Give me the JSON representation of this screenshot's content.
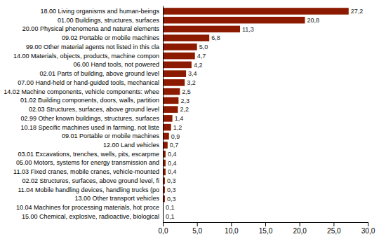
{
  "chart_data": {
    "type": "bar",
    "orientation": "horizontal",
    "categories": [
      "18.00 Living organisms and human-beings",
      "01.00 Buildings, structures, surfaces",
      "20.00 Physical phenomena and natural elements",
      "09.02 Portable or mobile machines",
      "99.00 Other material agents not listed in this cla",
      "14.00 Materials, objects, products, machine compon",
      "06.00 Hand tools, not powered",
      "02.01 Parts of building, above ground level",
      "07.00 Hand-held or hand-guided tools, mechanical",
      "14.02 Machine components, vehicle components: whee",
      "01.02 Building components, doors, walls, partition",
      "02.03 Structures, surfaces, above ground level",
      "02.99 Other known buildings, structures, surfaces",
      "10.18 Specific machines used in farming, not liste",
      "09.01 Portable or mobile machines",
      "12.00 Land vehicles",
      "03.01 Excavations, trenches, wells, pits, escarpme",
      "05.00 Motors, systems for energy transmission and",
      "11.03 Fixed cranes, mobile cranes, vehicle-mounted",
      "02.02 Structures, surfaces, above ground level, fi",
      "11.04 Mobile handling devices, handling trucks (po",
      "13.00 Other transport vehicles",
      "10.04 Machines for processing materials, hot proce",
      "15.00 Chemical, explosive, radioactive, biological"
    ],
    "values": [
      27.2,
      20.8,
      11.3,
      6.8,
      5.0,
      4.7,
      4.2,
      3.4,
      3.2,
      2.5,
      2.3,
      2.2,
      1.4,
      1.2,
      0.9,
      0.7,
      0.4,
      0.4,
      0.4,
      0.3,
      0.3,
      0.3,
      0.1,
      0.1
    ],
    "value_labels": [
      "27,2",
      "20,8",
      "11,3",
      "6,8",
      "5,0",
      "4,7",
      "4,2",
      "3,4",
      "3,2",
      "2,5",
      "2,3",
      "2,2",
      "1,4",
      "1,2",
      "0,9",
      "0,7",
      "0,4",
      "0,4",
      "0,4",
      "0,3",
      "0,3",
      "0,3",
      "0,1",
      "0,1"
    ],
    "data_labels": true,
    "color": "#8B1A00",
    "xlim": [
      0,
      30
    ],
    "xticks": [
      {
        "value": 0,
        "label": "0,0"
      },
      {
        "value": 5,
        "label": "5,0"
      },
      {
        "value": 10,
        "label": "10,0"
      },
      {
        "value": 15,
        "label": "15,0"
      },
      {
        "value": 20,
        "label": "20,0"
      },
      {
        "value": 25,
        "label": "25,0"
      },
      {
        "value": 30,
        "label": "30,0"
      }
    ],
    "grid": false
  }
}
